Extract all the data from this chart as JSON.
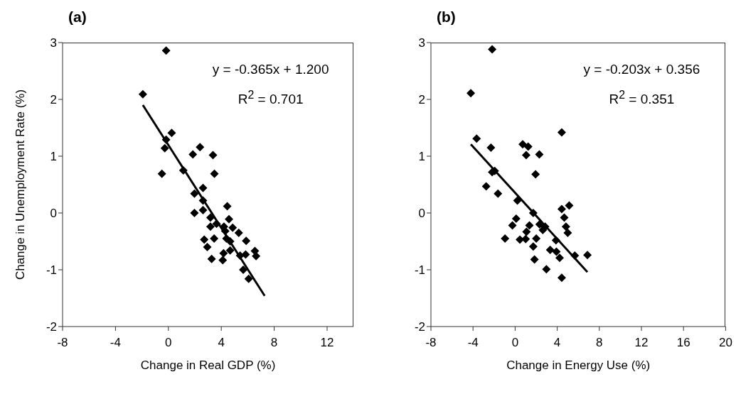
{
  "chart_data": [
    {
      "type": "scatter",
      "title": "(a)",
      "xlabel": "Change in Real GDP (%)",
      "ylabel": "Change in Unemployment Rate (%)",
      "xlim": [
        -8,
        14
      ],
      "xticks": [
        -8,
        -4,
        0,
        4,
        8,
        12
      ],
      "ylim": [
        -2,
        3
      ],
      "yticks": [
        -2,
        -1,
        0,
        1,
        2,
        3
      ],
      "annotations": [
        "y = -0.365x + 1.200",
        "R$^{2}$ = 0.701"
      ],
      "series": [
        {
          "marker": "diamond",
          "color": "#000000",
          "x": [
            -0.17,
            -1.93,
            0.25,
            -0.17,
            -0.27,
            -0.49,
            1.13,
            1.85,
            2.39,
            3.37,
            3.48,
            2.62,
            1.97,
            2.62,
            2.62,
            1.97,
            4.45,
            3.18,
            4.58,
            3.64,
            3.18,
            4.2,
            4.86,
            4.3,
            5.32,
            2.71,
            3.46,
            4.39,
            5.88,
            2.94,
            4.67,
            4.67,
            4.17,
            5.84,
            5.42,
            6.54,
            6.63,
            3.27,
            4.11,
            5.66,
            6.07
          ],
          "values": [
            2.86,
            2.09,
            1.41,
            1.29,
            1.14,
            0.69,
            0.75,
            1.03,
            1.16,
            1.02,
            0.69,
            0.44,
            0.34,
            0.22,
            0.05,
            0.0,
            0.12,
            -0.08,
            -0.11,
            -0.19,
            -0.24,
            -0.24,
            -0.26,
            -0.32,
            -0.35,
            -0.47,
            -0.45,
            -0.45,
            -0.49,
            -0.6,
            -0.5,
            -0.66,
            -0.71,
            -0.73,
            -0.75,
            -0.67,
            -0.76,
            -0.81,
            -0.83,
            -1.0,
            -1.16
          ]
        },
        {
          "type": "line",
          "marker": "none",
          "color": "#000000",
          "x": [
            -1.93,
            7.28
          ],
          "values": [
            1.9,
            -1.46
          ]
        }
      ]
    },
    {
      "type": "scatter",
      "title": "(b)",
      "xlabel": "Change in Energy Use (%)",
      "xlim": [
        -8,
        20
      ],
      "xticks": [
        -8,
        -4,
        0,
        4,
        8,
        12,
        16,
        20
      ],
      "ylim": [
        -2,
        3
      ],
      "yticks": [
        -2,
        -1,
        0,
        1,
        2,
        3
      ],
      "annotations": [
        "y = -0.203x + 0.356",
        "R$^{2}$ = 0.351"
      ],
      "series": [
        {
          "marker": "diamond",
          "color": "#000000",
          "x": [
            -2.18,
            -4.21,
            4.43,
            -3.66,
            -2.3,
            0.72,
            1.24,
            1.05,
            2.3,
            1.94,
            -2.18,
            -1.94,
            -2.75,
            -1.63,
            0.22,
            1.72,
            0.1,
            -0.26,
            4.43,
            5.14,
            4.67,
            4.83,
            5.0,
            2.32,
            2.85,
            2.63,
            1.36,
            1.08,
            -0.96,
            0.45,
            1.0,
            2.01,
            3.88,
            1.72,
            3.33,
            3.92,
            4.23,
            5.67,
            6.87,
            1.84,
            2.97,
            4.43
          ],
          "values": [
            2.88,
            2.11,
            1.42,
            1.31,
            1.15,
            1.21,
            1.17,
            1.02,
            1.03,
            0.68,
            0.72,
            0.74,
            0.47,
            0.34,
            0.22,
            0.0,
            -0.1,
            -0.22,
            0.07,
            0.13,
            -0.08,
            -0.24,
            -0.35,
            -0.2,
            -0.24,
            -0.3,
            -0.22,
            -0.33,
            -0.45,
            -0.47,
            -0.46,
            -0.45,
            -0.48,
            -0.59,
            -0.65,
            -0.68,
            -0.79,
            -0.75,
            -0.74,
            -0.82,
            -0.99,
            -1.14
          ]
        },
        {
          "type": "line",
          "marker": "none",
          "color": "#000000",
          "x": [
            -4.21,
            6.87
          ],
          "values": [
            1.21,
            -1.04
          ]
        }
      ]
    }
  ]
}
